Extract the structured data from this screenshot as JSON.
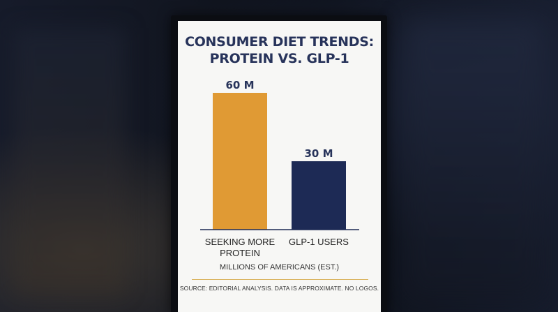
{
  "title_line1": "CONSUMER DIET TRENDS:",
  "title_line2": "PROTEIN VS. GLP-1",
  "caption": "MILLIONS OF AMERICANS (EST.)",
  "source": "SOURCE: EDITORIAL ANALYSIS. DATA IS APPROXIMATE. NO LOGOS.",
  "chart_data": {
    "type": "bar",
    "title": "CONSUMER DIET TRENDS: PROTEIN VS. GLP-1",
    "categories": [
      [
        "SEEKING MORE",
        "PROTEIN"
      ],
      [
        "GLP-1 USERS"
      ]
    ],
    "values": [
      60,
      30
    ],
    "value_labels": [
      "60 M",
      "30 M"
    ],
    "colors": [
      "#e09a34",
      "#1d2a55"
    ],
    "xlabel": "MILLIONS OF AMERICANS (EST.)",
    "ylim": [
      0,
      60
    ],
    "grid": false,
    "legend": "none"
  }
}
